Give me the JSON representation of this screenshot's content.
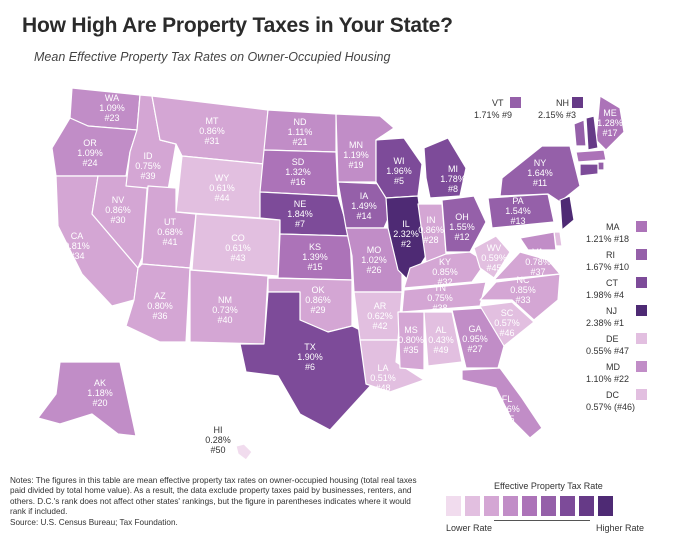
{
  "title": "How High Are Property Taxes in Your State?",
  "subtitle": "Mean Effective Property Tax Rates on Owner-Occupied Housing",
  "palette": [
    "#f1dcee",
    "#e2bfe0",
    "#d4a6d4",
    "#c18dc7",
    "#ac73b8",
    "#9560a9",
    "#7d4b99",
    "#663a87",
    "#4e2a74"
  ],
  "states": {
    "WA": {
      "rate": "1.09%",
      "rank": "#23"
    },
    "OR": {
      "rate": "1.09%",
      "rank": "#24"
    },
    "CA": {
      "rate": "0.81%",
      "rank": "#34"
    },
    "NV": {
      "rate": "0.86%",
      "rank": "#30"
    },
    "ID": {
      "rate": "0.75%",
      "rank": "#39"
    },
    "MT": {
      "rate": "0.86%",
      "rank": "#31"
    },
    "WY": {
      "rate": "0.61%",
      "rank": "#44"
    },
    "UT": {
      "rate": "0.68%",
      "rank": "#41"
    },
    "AZ": {
      "rate": "0.80%",
      "rank": "#36"
    },
    "CO": {
      "rate": "0.61%",
      "rank": "#43"
    },
    "NM": {
      "rate": "0.73%",
      "rank": "#40"
    },
    "ND": {
      "rate": "1.11%",
      "rank": "#21"
    },
    "SD": {
      "rate": "1.32%",
      "rank": "#16"
    },
    "NE": {
      "rate": "1.84%",
      "rank": "#7"
    },
    "KS": {
      "rate": "1.39%",
      "rank": "#15"
    },
    "OK": {
      "rate": "0.86%",
      "rank": "#29"
    },
    "TX": {
      "rate": "1.90%",
      "rank": "#6"
    },
    "MN": {
      "rate": "1.19%",
      "rank": "#19"
    },
    "IA": {
      "rate": "1.49%",
      "rank": "#14"
    },
    "MO": {
      "rate": "1.02%",
      "rank": "#26"
    },
    "AR": {
      "rate": "0.62%",
      "rank": "#42"
    },
    "LA": {
      "rate": "0.51%",
      "rank": "#48"
    },
    "WI": {
      "rate": "1.96%",
      "rank": "#5"
    },
    "IL": {
      "rate": "2.32%",
      "rank": "#2"
    },
    "MI": {
      "rate": "1.78%",
      "rank": "#8"
    },
    "IN": {
      "rate": "0.86%",
      "rank": "#28"
    },
    "OH": {
      "rate": "1.55%",
      "rank": "#12"
    },
    "KY": {
      "rate": "0.85%",
      "rank": "#32"
    },
    "TN": {
      "rate": "0.75%",
      "rank": "#38"
    },
    "MS": {
      "rate": "0.80%",
      "rank": "#35"
    },
    "AL": {
      "rate": "0.43%",
      "rank": "#49"
    },
    "GA": {
      "rate": "0.95%",
      "rank": "#27"
    },
    "FL": {
      "rate": "1.06%",
      "rank": "#25"
    },
    "SC": {
      "rate": "0.57%",
      "rank": "#46"
    },
    "NC": {
      "rate": "0.85%",
      "rank": "#33"
    },
    "VA": {
      "rate": "0.78%",
      "rank": "#37"
    },
    "WV": {
      "rate": "0.59%",
      "rank": "#45"
    },
    "PA": {
      "rate": "1.54%",
      "rank": "#13"
    },
    "NY": {
      "rate": "1.64%",
      "rank": "#11"
    },
    "ME": {
      "rate": "1.28%",
      "rank": "#17"
    },
    "AK": {
      "rate": "1.18%",
      "rank": "#20"
    },
    "HI": {
      "rate": "0.28%",
      "rank": "#50"
    }
  },
  "side_labels": {
    "VT": {
      "abbr": "VT",
      "text": "1.71% #9"
    },
    "NH": {
      "abbr": "NH",
      "text": "2.15% #3"
    },
    "MA": {
      "abbr": "MA",
      "text": "1.21% #18"
    },
    "RI": {
      "abbr": "RI",
      "text": "1.67% #10"
    },
    "CT": {
      "abbr": "CT",
      "text": "1.98% #4"
    },
    "NJ": {
      "abbr": "NJ",
      "text": "2.38% #1"
    },
    "DE": {
      "abbr": "DE",
      "text": "0.55% #47"
    },
    "MD": {
      "abbr": "MD",
      "text": "1.10% #22"
    },
    "DC": {
      "abbr": "DC",
      "text": "0.57% (#46)"
    }
  },
  "notes": "Notes: The figures in this table are mean effective property tax rates on owner-occupied housing (total real taxes paid divided by total home value). As a result, the data exclude property taxes paid by businesses, renters, and others. D.C.'s rank does not affect other states' rankings, but the figure in parentheses indicates where it would rank if included.",
  "source": "Source: U.S. Census Bureau; Tax Foundation.",
  "legend": {
    "title": "Effective Property Tax Rate",
    "low": "Lower Rate",
    "high": "Higher Rate"
  }
}
